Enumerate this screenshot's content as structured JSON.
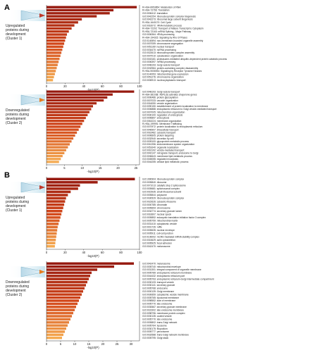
{
  "panels": [
    {
      "letter": "A"
    },
    {
      "letter": "B"
    }
  ],
  "chart_data": [
    {
      "type": "bar",
      "orientation": "horizontal",
      "panel": "A",
      "group_label": [
        "Upregulated",
        "proteins during",
        "development",
        "(Cluster 1)"
      ],
      "xlabel": "-log10(P)",
      "xticks": [
        0,
        20,
        40,
        60,
        80,
        100
      ],
      "xlim": [
        0,
        100
      ],
      "color_scheme": "red-to-orange gradient",
      "categories": [
        "R-HSA-8953854: Metabolism of RNA",
        "R-HSA-72766: Translation",
        "GO:0006412: translation",
        "GO:0042254: ribonucleoprotein complex biogenesis",
        "GO:0042273: ribosomal large subunit biogenesis",
        "R-HSA-1640170: Cell Cycle",
        "GO:0016072: rRNA metabolic process",
        "R-HSA-72202: Transport of Mature Transcript to Cytoplasm",
        "R-HSA-72163: mRNA Splicing - Major Pathway",
        "GO:0006364: rRNA processing",
        "R-HSA-194315: Signaling by Rho GTPases",
        "GO:0140694: non-membrane-bounded organelle assembly",
        "GO:0007059: chromosome segregation",
        "GO:0051169: nuclear transport",
        "GO:0034470: ncRNA processing",
        "GO:0022613: ribonucleoprotein complex assembly",
        "GO:0007010: cytoskeleton organization",
        "GO:0043161: proteasome-mediated ubiquitin-dependent protein catabolic process",
        "GO:0006397: mRNA processing",
        "GO:0048193: Golgi vesicle transport",
        "GO:0032984: protein-containing complex disassembly",
        "R-HSA-9006934: Signaling by Receptor Tyrosine Kinases",
        "GO:0140053: mitochondrial gene expression",
        "GO:0051276: chromosome organization",
        "GO:0006913: nucleocytoplasmic transport"
      ],
      "values": [
        97,
        72,
        68,
        54,
        38,
        34,
        30,
        27,
        24,
        22,
        21,
        20,
        19,
        18,
        17,
        16,
        15,
        14,
        13,
        12,
        11,
        10,
        9,
        8,
        7
      ]
    },
    {
      "type": "bar",
      "orientation": "horizontal",
      "panel": "A",
      "group_label": [
        "Downregulated",
        "proteins during",
        "development",
        "(Cluster 2)"
      ],
      "xlabel": "-log10(P)",
      "xticks": [
        0,
        5,
        10,
        15,
        20,
        25
      ],
      "xlim": [
        0,
        26
      ],
      "color_scheme": "red-to-orange gradient",
      "categories": [
        "GO:0048193: Golgi vesicle transport",
        "R-HSA-381038: XBP1(S) activates chaperone genes",
        "GO:0006486: protein glycosylation",
        "GO:0007033: vacuole organization",
        "GO:0016050: vesicle organization",
        "GO:0090150: establishment of protein localization to membrane",
        "GO:0006888: endoplasmic reticulum to Golgi vesicle-mediated transport",
        "GO:0007005: mitochondrion organization",
        "GO:0030100: regulation of endocytosis",
        "GO:0006897: endocytosis",
        "GO:0061024: membrane organization",
        "R-HSA-199991: Membrane Trafficking",
        "GO:0070972: protein localization to endoplasmic reticulum",
        "GO:0046907: intracellular transport",
        "GO:0016482: cytosolic transport",
        "GO:0006605: protein targeting",
        "GO:0032940: secretion by cell",
        "GO:0009100: glycoprotein metabolic process",
        "GO:0010256: endomembrane system organization",
        "GO:0051640: organelle localization",
        "GO:0016192: vesicle-mediated transport",
        "GO:0042147: retrograde transport, endosome to Golgi",
        "GO:0006643: membrane lipid metabolic process",
        "GO:0045055: regulated exocytosis",
        "GO:0044255: cellular lipid metabolic process"
      ],
      "values": [
        24.5,
        18.5,
        17,
        16,
        14,
        13,
        12.5,
        12,
        11.5,
        11,
        10.5,
        10,
        9.5,
        9,
        8.5,
        8,
        7.5,
        7,
        6.5,
        6,
        5.5,
        5,
        4.5,
        4,
        3.5
      ]
    },
    {
      "type": "bar",
      "orientation": "horizontal",
      "panel": "B",
      "group_label": [
        "Upregulated",
        "proteins during",
        "development",
        "(Cluster 1)"
      ],
      "xlabel": "-log10(P)",
      "xticks": [
        0,
        20,
        40,
        60,
        80,
        100
      ],
      "xlim": [
        0,
        100
      ],
      "color_scheme": "red-to-orange gradient",
      "categories": [
        "GO:1990904: ribonucleoprotein complex",
        "GO:0005840: ribosome",
        "GO:0071013: catalytic step 2 spliceosome",
        "GO:0005681: spliceosomal complex",
        "GO:0015935: small ribosomal subunit",
        "GO:0005844: polysome",
        "GO:0030529: ribonucleoprotein complex",
        "GO:0022626: cytosolic ribosome",
        "GO:0000785: chromatin",
        "GO:0005694: chromosome",
        "GO:0034774: secretory granule lumen",
        "GO:0016607: nuclear speck",
        "GO:0005852: eukaryotic translation initiation factor 3 complex",
        "GO:0005759: mitochondrial matrix",
        "GO:0031410: cytoplasmic vesicle",
        "GO:0001726: ruffle",
        "GO:0005635: nuclear envelope",
        "GO:0005911: cell-cell junction",
        "GO:0106002: mCRD-mediated mRNA stability complex",
        "GO:0015629: actin cytoskeleton",
        "GO:0005925: focal adhesion",
        "GO:0042470: melanosome"
      ],
      "values": [
        95,
        55,
        36,
        34,
        26,
        23,
        21,
        20,
        19,
        18,
        17,
        16,
        15,
        14,
        13,
        12,
        11.5,
        11,
        10.5,
        10,
        9.5,
        9
      ]
    },
    {
      "type": "bar",
      "orientation": "horizontal",
      "panel": "B",
      "group_label": [
        "Downregulated",
        "proteins during",
        "development",
        "(Cluster 2)"
      ],
      "xlabel": "-log10(P)",
      "xticks": [
        0,
        5,
        10,
        15,
        20,
        25,
        30
      ],
      "xlim": [
        0,
        33
      ],
      "color_scheme": "red-to-orange gradient",
      "categories": [
        "GO:0042470: melanosome",
        "GO:0005740: mitochondrial envelope",
        "GO:0031301: integral component of organelle membrane",
        "GO:0005789: endoplasmic reticulum membrane",
        "GO:0044432: endoplasmic reticulum part",
        "GO:0005793: endoplasmic reticulum-Golgi intermediate compartment",
        "GO:0030133: transport vesicle",
        "GO:0030141: secretory granule",
        "GO:0005768: endosome",
        "GO:0000139: Golgi membrane",
        "GO:0030659: cytoplasmic vesicle membrane",
        "GO:0005765: lysosomal membrane",
        "GO:0098552: side of membrane",
        "GO:0005770: late endosome",
        "GO:0030667: secretory granule membrane",
        "GO:0031902: late endosome membrane",
        "GO:0098796: membrane protein complex",
        "GO:0030135: coated vesicle",
        "GO:0005770: late endosome",
        "GO:0005802: trans-Golgi network",
        "GO:0005764: lysosome",
        "GO:0030175: filopodium",
        "GO:0005777: peroxisome",
        "GO:0032588: trans-Golgi network membrane",
        "GO:0005795: Golgi stack"
      ],
      "values": [
        31,
        24,
        18,
        16,
        15.5,
        15,
        14.5,
        14,
        13.5,
        13,
        12.5,
        12,
        11.5,
        11,
        10.5,
        10,
        9.5,
        9,
        8.5,
        8,
        7.5,
        7,
        6.5,
        6,
        5.5
      ]
    }
  ]
}
